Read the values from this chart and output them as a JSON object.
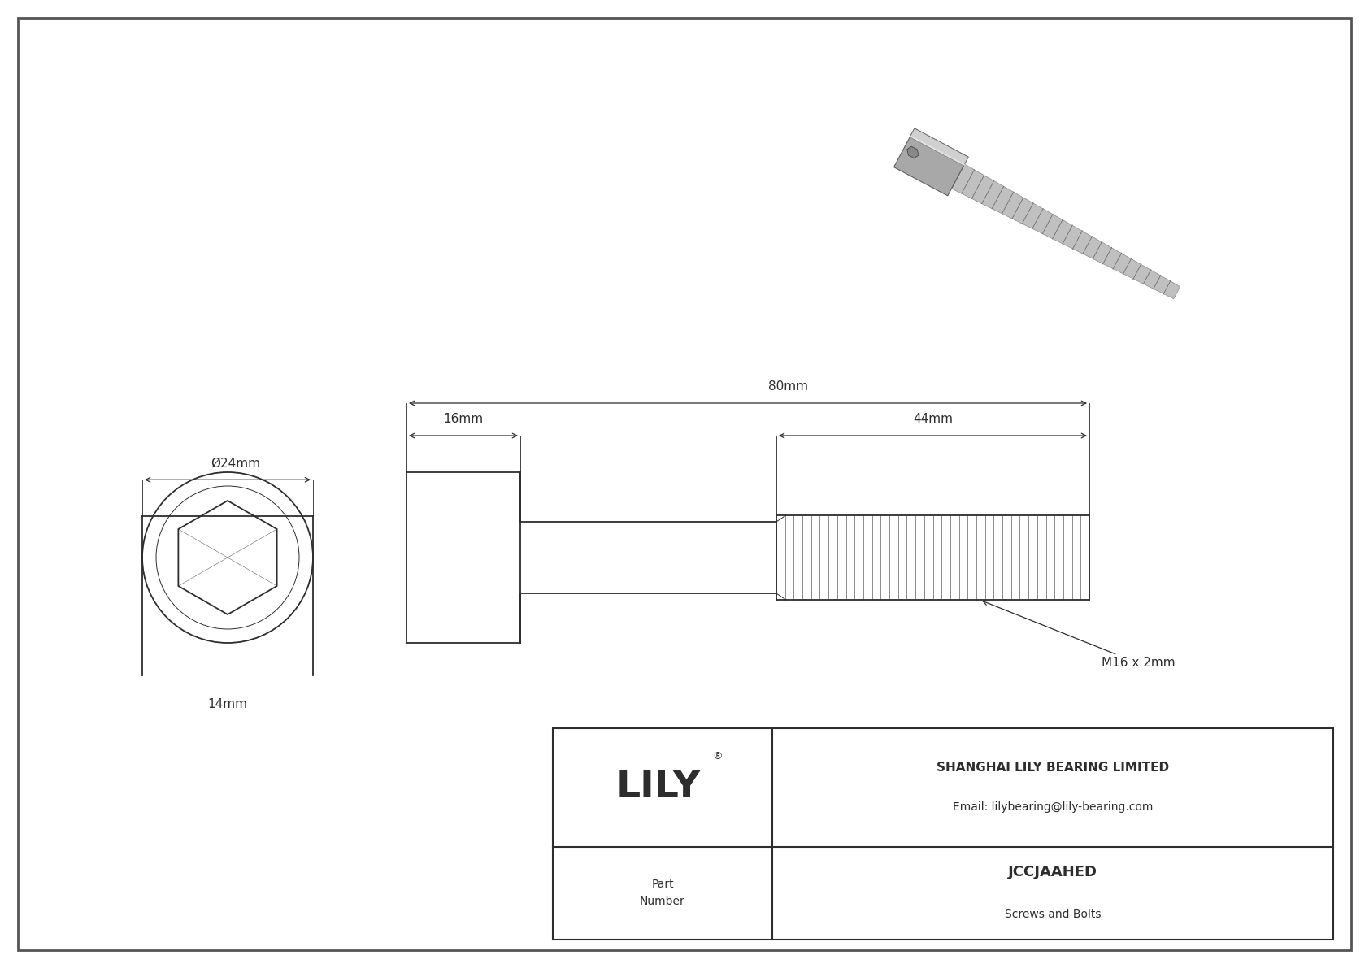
{
  "bg_color": "#ffffff",
  "line_color": "#2d2d2d",
  "dim_color": "#2d2d2d",
  "title_company": "SHANGHAI LILY BEARING LIMITED",
  "title_email": "Email: lilybearing@lily-bearing.com",
  "part_number": "JCCJAAHED",
  "part_category": "Screws and Bolts",
  "part_label": "Part\nNumber",
  "brand": "LILY",
  "brand_reg": "®",
  "dim_diameter": "Ø24mm",
  "dim_head_width": "16mm",
  "dim_total_length": "80mm",
  "dim_thread_length": "44mm",
  "dim_socket": "14mm",
  "dim_thread_spec": "M16 x 2mm",
  "border_color": "#555555"
}
